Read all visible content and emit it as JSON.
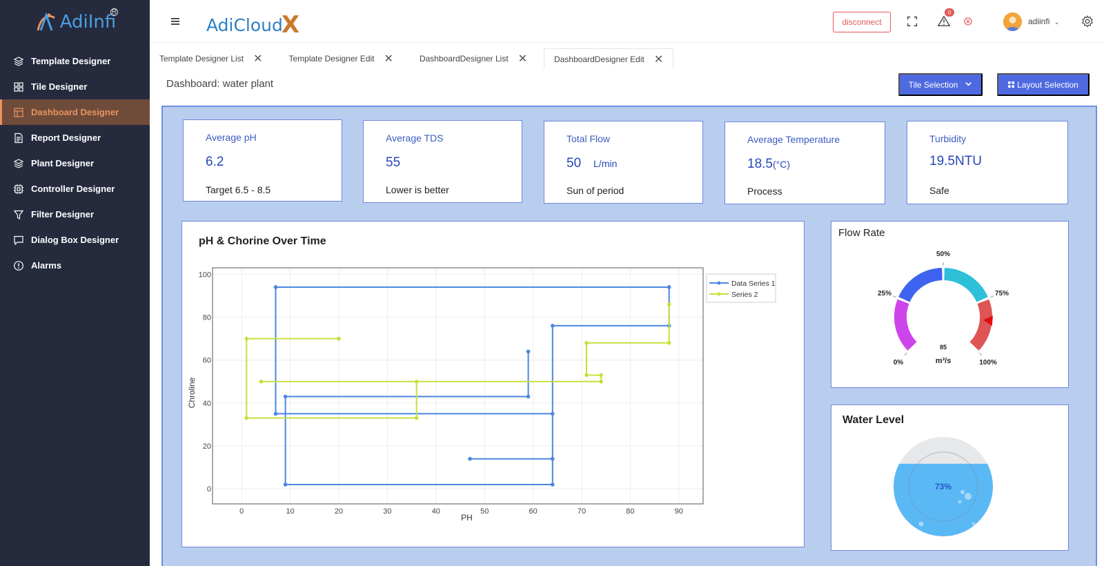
{
  "sidebar": {
    "logo": "AdiInfi",
    "items": [
      {
        "label": "Template Designer",
        "icon": "layers-icon"
      },
      {
        "label": "Tile Designer",
        "icon": "grid-icon"
      },
      {
        "label": "Dashboard Designer",
        "icon": "dashboard-icon",
        "active": true
      },
      {
        "label": "Report Designer",
        "icon": "document-icon"
      },
      {
        "label": "Plant Designer",
        "icon": "layers-icon"
      },
      {
        "label": "Controller Designer",
        "icon": "chip-icon"
      },
      {
        "label": "Filter Designer",
        "icon": "filter-icon"
      },
      {
        "label": "Dialog Box Designer",
        "icon": "message-icon"
      },
      {
        "label": "Alarms",
        "icon": "alert-circle-icon"
      }
    ]
  },
  "topbar": {
    "brand": "AdiCloud",
    "brand_x": "X",
    "disconnect_label": "disconnect",
    "alert_count": "0",
    "username": "adiinfi"
  },
  "tabs": [
    {
      "label": "Template Designer List"
    },
    {
      "label": "Template Designer Edit"
    },
    {
      "label": "DashboardDesigner List"
    },
    {
      "label": "DashboardDesigner Edit",
      "active": true
    }
  ],
  "page": {
    "title": "Dashboard: water plant",
    "tile_selection_label": "Tile Selection",
    "layout_selection_label": "Layout Selection"
  },
  "kpis": [
    {
      "title": "Average pH",
      "value": "6.2",
      "unit": "",
      "foot": "Target  6.5 - 8.5"
    },
    {
      "title": "Average TDS",
      "value": "55",
      "unit": "",
      "foot": "Lower is better"
    },
    {
      "title": "Total Flow",
      "value": "50",
      "unit": "L/min",
      "foot": "Sun of period"
    },
    {
      "title": "Average Temperature",
      "value": "18.5",
      "unit": "(°C)",
      "foot": "Process"
    },
    {
      "title": "Turbidity",
      "value": "19.5NTU",
      "unit": "",
      "foot": "Safe"
    }
  ],
  "chart_data": {
    "type": "line",
    "title": "pH & Chorine Over Time",
    "xlabel": "PH",
    "ylabel": "Chroline",
    "xlim": [
      -6,
      95
    ],
    "ylim": [
      -7,
      103
    ],
    "x_ticks": [
      0,
      10,
      20,
      30,
      40,
      50,
      60,
      70,
      80,
      90
    ],
    "y_ticks": [
      0,
      20,
      40,
      60,
      80,
      100
    ],
    "grid": true,
    "legend_position": "top-right",
    "series": [
      {
        "name": "Data Series 1",
        "color": "#4a86e0",
        "points": [
          [
            47,
            14
          ],
          [
            64,
            14
          ],
          [
            64,
            35
          ],
          [
            7,
            35
          ],
          [
            7,
            94
          ],
          [
            88,
            94
          ],
          [
            88,
            76
          ],
          [
            64,
            76
          ],
          [
            64,
            2
          ],
          [
            9,
            2
          ],
          [
            9,
            43
          ],
          [
            59,
            43
          ],
          [
            59,
            64
          ]
        ]
      },
      {
        "name": "Series 2",
        "color": "#c8df3c",
        "points": [
          [
            20,
            70
          ],
          [
            1,
            70
          ],
          [
            1,
            33
          ],
          [
            36,
            33
          ],
          [
            36,
            50
          ],
          [
            4,
            50
          ],
          [
            74,
            50
          ],
          [
            74,
            53
          ],
          [
            71,
            53
          ],
          [
            71,
            68
          ],
          [
            88,
            68
          ],
          [
            88,
            86
          ]
        ]
      }
    ]
  },
  "flow_gauge": {
    "title": "Flow Rate",
    "value": "85",
    "value_pct": 85,
    "unit": "m³/s",
    "labels": [
      "0%",
      "25%",
      "50%",
      "75%",
      "100%"
    ],
    "colors": [
      "#cd45ea",
      "#3d63f0",
      "#2ebfd9",
      "#df5555"
    ]
  },
  "water_level": {
    "title": "Water Level",
    "value": "73%",
    "value_pct": 73,
    "color": "#5ab8f5"
  }
}
